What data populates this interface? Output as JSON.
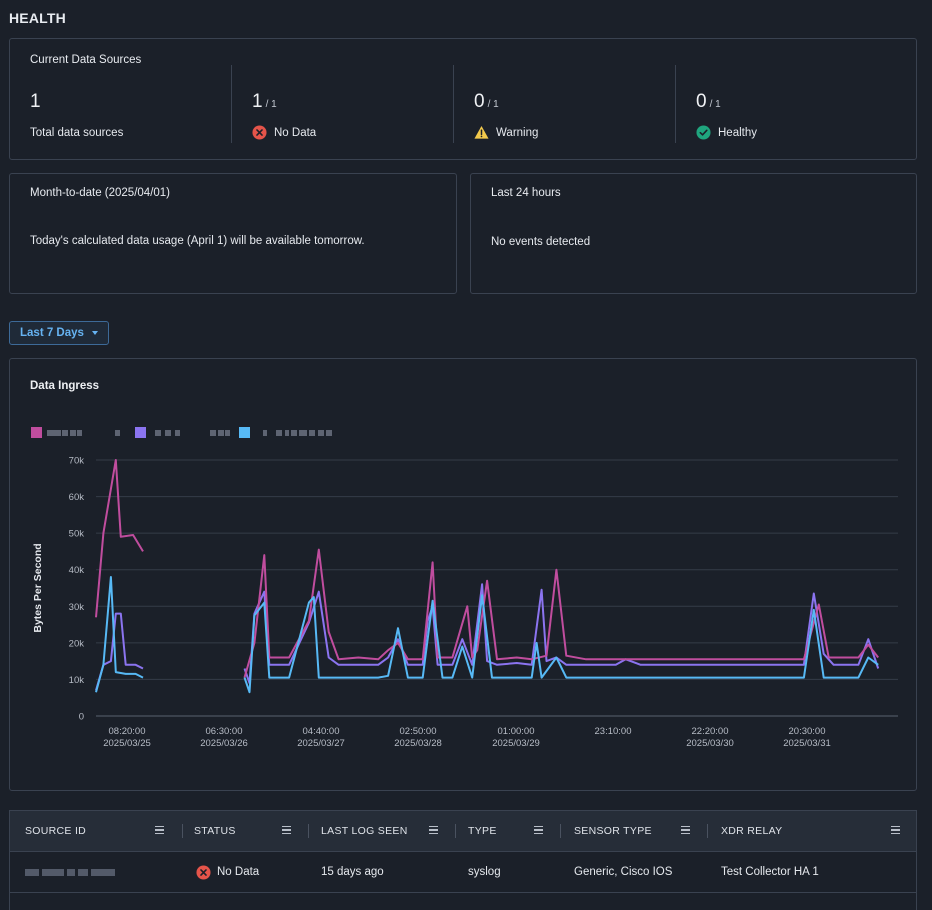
{
  "page": {
    "title": "HEALTH"
  },
  "sources": {
    "title": "Current Data Sources",
    "total": {
      "value": "1",
      "label": "Total data sources"
    },
    "no_data": {
      "value": "1",
      "denom": "/ 1",
      "label": "No Data"
    },
    "warning": {
      "value": "0",
      "denom": "/ 1",
      "label": "Warning"
    },
    "healthy": {
      "value": "0",
      "denom": "/ 1",
      "label": "Healthy"
    }
  },
  "mtd": {
    "title": "Month-to-date (2025/04/01)",
    "message": "Today's calculated data usage (April 1) will be available tomorrow."
  },
  "last24": {
    "title": "Last 24 hours",
    "message": "No events detected"
  },
  "range_selector": {
    "label": "Last 7 Days"
  },
  "colors": {
    "series1": "#c04d9e",
    "series2": "#8b74f0",
    "series3": "#57b9f5",
    "error": "#e5544a",
    "warning": "#f2c94c",
    "healthy": "#1fa57e",
    "accent": "#66b3f2"
  },
  "chart_data": {
    "type": "line",
    "title": "Data Ingress",
    "ylabel": "Bytes Per Second",
    "ylim": [
      0,
      70000
    ],
    "yticks": [
      "0",
      "10k",
      "20k",
      "30k",
      "40k",
      "50k",
      "60k",
      "70k"
    ],
    "xticks": [
      {
        "time": "08:20:00",
        "date": "2025/03/25"
      },
      {
        "time": "06:30:00",
        "date": "2025/03/26"
      },
      {
        "time": "04:40:00",
        "date": "2025/03/27"
      },
      {
        "time": "02:50:00",
        "date": "2025/03/28"
      },
      {
        "time": "01:00:00",
        "date": "2025/03/29"
      },
      {
        "time": "23:10:00",
        "date": ""
      },
      {
        "time": "22:20:00",
        "date": "2025/03/30"
      },
      {
        "time": "20:30:00",
        "date": "2025/03/31"
      }
    ],
    "x_range_hours": [
      0,
      162
    ],
    "series": [
      {
        "segments": [
          [
            [
              0,
              27000
            ],
            [
              1.5,
              50000
            ],
            [
              4,
              70000
            ],
            [
              5,
              49000
            ],
            [
              7.5,
              49500
            ],
            [
              9.5,
              45000
            ]
          ],
          [
            [
              30,
              10500
            ],
            [
              32,
              20000
            ],
            [
              34,
              44000
            ],
            [
              35,
              16000
            ],
            [
              39,
              16000
            ],
            [
              43,
              26000
            ],
            [
              45,
              45500
            ],
            [
              47,
              23000
            ],
            [
              49,
              15500
            ],
            [
              53,
              16000
            ],
            [
              57,
              15500
            ],
            [
              59,
              18000
            ],
            [
              61,
              20000
            ],
            [
              63,
              15500
            ],
            [
              66,
              15500
            ],
            [
              68,
              42000
            ],
            [
              69,
              16000
            ],
            [
              72,
              16000
            ],
            [
              75,
              30000
            ],
            [
              76,
              16000
            ],
            [
              77,
              18000
            ],
            [
              79,
              37000
            ],
            [
              81,
              15500
            ],
            [
              85,
              16000
            ],
            [
              88,
              15500
            ],
            [
              91,
              16500
            ],
            [
              93,
              40000
            ],
            [
              95,
              16500
            ],
            [
              99,
              15500
            ],
            [
              110,
              15500
            ],
            [
              140,
              15500
            ],
            [
              143,
              15500
            ],
            [
              146,
              30500
            ],
            [
              148,
              16000
            ],
            [
              154,
              16000
            ],
            [
              156,
              19500
            ],
            [
              158,
              16000
            ]
          ]
        ]
      },
      {
        "segments": [
          [
            [
              0,
              7000
            ],
            [
              1.5,
              14000
            ],
            [
              3,
              15000
            ],
            [
              4,
              28000
            ],
            [
              5,
              28000
            ],
            [
              6,
              14000
            ],
            [
              8,
              14000
            ],
            [
              9.5,
              13000
            ]
          ],
          [
            [
              30,
              13000
            ],
            [
              31,
              9000
            ],
            [
              32,
              28000
            ],
            [
              34,
              34000
            ],
            [
              35,
              14000
            ],
            [
              39,
              14000
            ],
            [
              43,
              25500
            ],
            [
              45,
              34000
            ],
            [
              47,
              16000
            ],
            [
              49,
              14000
            ],
            [
              53,
              14000
            ],
            [
              57,
              14000
            ],
            [
              59,
              16000
            ],
            [
              61,
              21000
            ],
            [
              63,
              14000
            ],
            [
              66,
              14000
            ],
            [
              67,
              26000
            ],
            [
              68,
              30000
            ],
            [
              69,
              14000
            ],
            [
              72,
              14000
            ],
            [
              74,
              21000
            ],
            [
              76,
              14000
            ],
            [
              78,
              36000
            ],
            [
              79,
              15000
            ],
            [
              81,
              14000
            ],
            [
              85,
              14500
            ],
            [
              88,
              14000
            ],
            [
              90,
              34500
            ],
            [
              91,
              15000
            ],
            [
              93,
              16000
            ],
            [
              95,
              14000
            ],
            [
              99,
              14000
            ],
            [
              105,
              14000
            ],
            [
              107,
              15500
            ],
            [
              110,
              14000
            ],
            [
              120,
              14000
            ],
            [
              131,
              14000
            ],
            [
              140,
              14000
            ],
            [
              143,
              14000
            ],
            [
              145,
              33500
            ],
            [
              147,
              17000
            ],
            [
              149,
              14000
            ],
            [
              154,
              14000
            ],
            [
              156,
              21000
            ],
            [
              158,
              13000
            ]
          ]
        ]
      },
      {
        "segments": [
          [
            [
              0,
              6500
            ],
            [
              1.5,
              14000
            ],
            [
              3,
              38000
            ],
            [
              4,
              12000
            ],
            [
              6,
              11500
            ],
            [
              8,
              11500
            ],
            [
              9.5,
              10500
            ]
          ],
          [
            [
              30,
              10500
            ],
            [
              31,
              6500
            ],
            [
              32,
              27500
            ],
            [
              34,
              31000
            ],
            [
              35,
              10500
            ],
            [
              39,
              10500
            ],
            [
              43,
              31000
            ],
            [
              44,
              32500
            ],
            [
              45,
              10500
            ],
            [
              47,
              10500
            ],
            [
              49,
              10500
            ],
            [
              57,
              10500
            ],
            [
              59,
              11000
            ],
            [
              61,
              24000
            ],
            [
              63,
              10500
            ],
            [
              66,
              10500
            ],
            [
              68,
              31500
            ],
            [
              70,
              10500
            ],
            [
              72,
              10500
            ],
            [
              74,
              19000
            ],
            [
              76,
              10500
            ],
            [
              78,
              33000
            ],
            [
              80,
              10500
            ],
            [
              85,
              10500
            ],
            [
              88,
              10500
            ],
            [
              89,
              20000
            ],
            [
              90,
              10500
            ],
            [
              93,
              16000
            ],
            [
              95,
              10500
            ],
            [
              99,
              10500
            ],
            [
              110,
              10500
            ],
            [
              130,
              10500
            ],
            [
              140,
              10500
            ],
            [
              143,
              10500
            ],
            [
              145,
              29000
            ],
            [
              147,
              10500
            ],
            [
              154,
              10500
            ],
            [
              156,
              16000
            ],
            [
              158,
              14000
            ]
          ]
        ]
      }
    ]
  },
  "table": {
    "columns": [
      "SOURCE ID",
      "STATUS",
      "LAST LOG SEEN",
      "TYPE",
      "SENSOR TYPE",
      "XDR RELAY"
    ],
    "rows": [
      {
        "status": "No Data",
        "last_log": "15 days ago",
        "type": "syslog",
        "sensor_type": "Generic, Cisco IOS",
        "relay": "Test Collector HA 1"
      }
    ]
  }
}
